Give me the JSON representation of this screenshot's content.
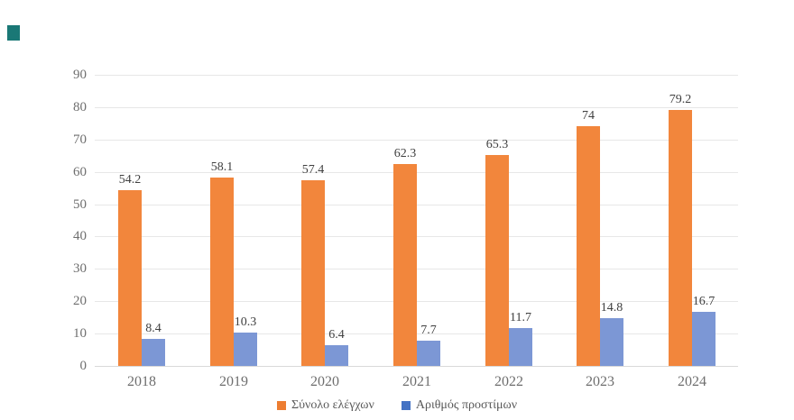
{
  "brand": {
    "square_color": "#1a7876"
  },
  "colors": {
    "background": "#ffffff",
    "gridline": "#e7e7e7",
    "axis_text": "#6e6e6e",
    "data_label_text": "#404040",
    "legend_text": "#595959",
    "series_orange": "#f2863c",
    "series_blue": "#7c97d5",
    "legend_orange": "#ed7d31",
    "legend_blue": "#4472c4"
  },
  "chart_data": {
    "type": "bar",
    "title": "",
    "xlabel": "",
    "ylabel": "",
    "categories": [
      "2018",
      "2019",
      "2020",
      "2021",
      "2022",
      "2023",
      "2024"
    ],
    "series": [
      {
        "name": "Σύνολο ελέγχων",
        "color": "#f2863c",
        "legend_color": "#ed7d31",
        "values": [
          54.2,
          58.1,
          57.4,
          62.3,
          65.3,
          74,
          79.2
        ],
        "labels": [
          "54.2",
          "58.1",
          "57.4",
          "62.3",
          "65.3",
          "74",
          "79.2"
        ]
      },
      {
        "name": "Αριθμός προστίμων",
        "color": "#7c97d5",
        "legend_color": "#4472c4",
        "values": [
          8.4,
          10.3,
          6.4,
          7.7,
          11.7,
          14.8,
          16.7
        ],
        "labels": [
          "8.4",
          "10.3",
          "6.4",
          "7.7",
          "11.7",
          "14.8",
          "16.7"
        ]
      }
    ],
    "y_axis": {
      "min": 0,
      "max": 90,
      "step": 10,
      "tick_labels": [
        "0",
        "10",
        "20",
        "30",
        "40",
        "50",
        "60",
        "70",
        "80",
        "90"
      ]
    },
    "grid": "horizontal",
    "legend_position": "bottom"
  }
}
